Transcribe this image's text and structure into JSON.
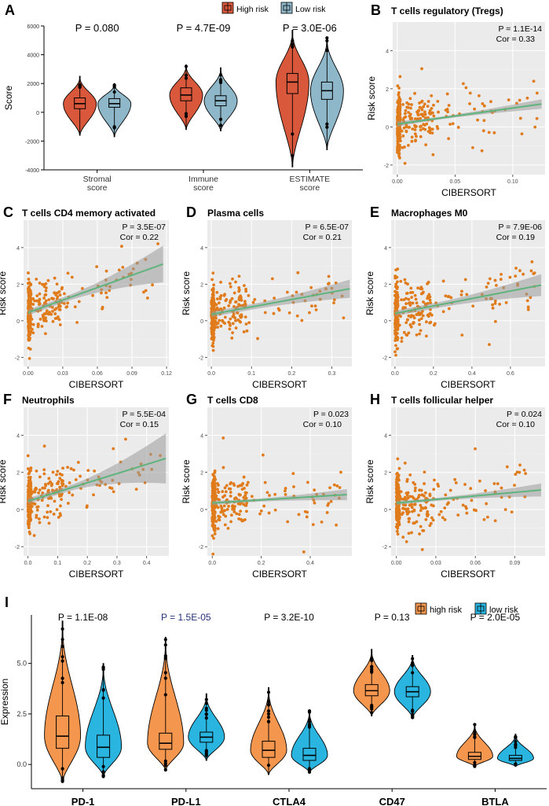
{
  "chart_data": [
    {
      "id": "A",
      "type": "violin",
      "panel_label": "A",
      "ylabel": "Score",
      "ylim": [
        -4000,
        6000
      ],
      "yticks": [
        -4000,
        -2000,
        0,
        2000,
        4000,
        6000
      ],
      "ytick_labels": [
        "-4000",
        "-2000",
        "0",
        "2000",
        "4000",
        "6000"
      ],
      "legend": [
        {
          "label": "High risk",
          "color": "#d9583b"
        },
        {
          "label": "Low risk",
          "color": "#8eb8c9"
        }
      ],
      "groups": [
        {
          "label_lines": [
            "Stromal",
            "score"
          ],
          "p_text": "P = 0.080",
          "series": [
            {
              "name": "High risk",
              "median": 600,
              "q1": 250,
              "q3": 1000,
              "min": -1600,
              "max": 2500
            },
            {
              "name": "Low risk",
              "median": 600,
              "q1": 350,
              "q3": 950,
              "min": -1700,
              "max": 2000
            }
          ]
        },
        {
          "label_lines": [
            "Immune",
            "score"
          ],
          "p_text": "P = 4.7E-09",
          "series": [
            {
              "name": "High risk",
              "median": 1200,
              "q1": 800,
              "q3": 1700,
              "min": -1200,
              "max": 3300
            },
            {
              "name": "Low risk",
              "median": 800,
              "q1": 450,
              "q3": 1150,
              "min": -1300,
              "max": 3100
            }
          ]
        },
        {
          "label_lines": [
            "ESTIMATE",
            "score"
          ],
          "p_text": "P = 3.0E-06",
          "series": [
            {
              "name": "High risk",
              "median": 2100,
              "q1": 1300,
              "q3": 2700,
              "min": -3800,
              "max": 5700
            },
            {
              "name": "Low risk",
              "median": 1500,
              "q1": 900,
              "q3": 2100,
              "min": -2600,
              "max": 5200
            }
          ]
        }
      ]
    },
    {
      "id": "B",
      "type": "scatter",
      "panel_label": "B",
      "title": "T cells regulatory (Tregs)",
      "xlabel": "CIBERSORT",
      "ylabel": "Risk score",
      "p_text": "P = 1.1E-14",
      "cor_text": "Cor = 0.33",
      "xlim": [
        -0.004,
        0.128
      ],
      "ylim": [
        -2.5,
        5.5
      ],
      "xticks": [
        0,
        0.05,
        0.1
      ],
      "xtick_labels": [
        "0.00",
        "0.05",
        "0.10"
      ],
      "yticks": [
        -2,
        0,
        2,
        4
      ],
      "ytick_labels": [
        "-2",
        "0",
        "2",
        "4"
      ],
      "fit": {
        "x0": 0,
        "y0": 0.15,
        "x1": 0.125,
        "y1": 1.2,
        "band0": 0.15,
        "band1": 0.25,
        "bandMid": 0.07
      }
    },
    {
      "id": "C",
      "type": "scatter",
      "panel_label": "C",
      "title": "T cells CD4 memory activated",
      "xlabel": "CIBERSORT",
      "ylabel": "Risk score",
      "p_text": "P = 3.5E-07",
      "cor_text": "Cor = 0.22",
      "xlim": [
        -0.004,
        0.122
      ],
      "ylim": [
        -2.5,
        5.5
      ],
      "xticks": [
        0,
        0.03,
        0.06,
        0.09,
        0.12
      ],
      "xtick_labels": [
        "0.00",
        "0.03",
        "0.06",
        "0.09",
        "0.12"
      ],
      "yticks": [
        -2,
        0,
        2,
        4
      ],
      "ytick_labels": [
        "-2",
        "0",
        "2",
        "4"
      ],
      "fit": {
        "x0": 0,
        "y0": 0.45,
        "x1": 0.117,
        "y1": 3.1,
        "band0": 0.15,
        "band1": 1.0,
        "bandMid": 0.15
      }
    },
    {
      "id": "D",
      "type": "scatter",
      "panel_label": "D",
      "title": "Plasma cells",
      "xlabel": "CIBERSORT",
      "ylabel": "Risk score",
      "p_text": "P = 6.5E-07",
      "cor_text": "Cor = 0.21",
      "xlim": [
        -0.01,
        0.35
      ],
      "ylim": [
        -2.5,
        5.5
      ],
      "xticks": [
        0,
        0.1,
        0.2,
        0.3
      ],
      "xtick_labels": [
        "0.0",
        "0.1",
        "0.2",
        "0.3"
      ],
      "yticks": [
        -2,
        0,
        2,
        4
      ],
      "ytick_labels": [
        "-2",
        "0",
        "2",
        "4"
      ],
      "fit": {
        "x0": 0,
        "y0": 0.35,
        "x1": 0.345,
        "y1": 1.75,
        "band0": 0.15,
        "band1": 0.5,
        "bandMid": 0.15
      }
    },
    {
      "id": "E",
      "type": "scatter",
      "panel_label": "E",
      "title": "Macrophages M0",
      "xlabel": "CIBERSORT",
      "ylabel": "Risk score",
      "p_text": "P = 7.9E-06",
      "cor_text": "Cor = 0.19",
      "xlim": [
        -0.02,
        0.78
      ],
      "ylim": [
        -2.5,
        5.5
      ],
      "xticks": [
        0,
        0.2,
        0.4,
        0.6
      ],
      "xtick_labels": [
        "0.0",
        "0.2",
        "0.4",
        "0.6"
      ],
      "yticks": [
        -2,
        0,
        2,
        4
      ],
      "ytick_labels": [
        "-2",
        "0",
        "2",
        "4"
      ],
      "fit": {
        "x0": 0,
        "y0": 0.4,
        "x1": 0.76,
        "y1": 1.95,
        "band0": 0.15,
        "band1": 0.6,
        "bandMid": 0.15
      }
    },
    {
      "id": "F",
      "type": "scatter",
      "panel_label": "F",
      "title": "Neutrophils",
      "xlabel": "CIBERSORT",
      "ylabel": "Risk score",
      "p_text": "P = 5.5E-04",
      "cor_text": "Cor = 0.15",
      "xlim": [
        -0.015,
        0.475
      ],
      "ylim": [
        -2.5,
        5.5
      ],
      "xticks": [
        0,
        0.1,
        0.2,
        0.3,
        0.4
      ],
      "xtick_labels": [
        "0.0",
        "0.1",
        "0.2",
        "0.3",
        "0.4"
      ],
      "yticks": [
        -2,
        0,
        2,
        4
      ],
      "ytick_labels": [
        "-2",
        "0",
        "2",
        "4"
      ],
      "fit": {
        "x0": 0,
        "y0": 0.45,
        "x1": 0.465,
        "y1": 2.75,
        "band0": 0.15,
        "band1": 1.35,
        "bandMid": 0.15
      }
    },
    {
      "id": "G",
      "type": "scatter",
      "panel_label": "G",
      "title": "T cells CD8",
      "xlabel": "CIBERSORT",
      "ylabel": "Risk score",
      "p_text": "P = 0.023",
      "cor_text": "Cor = 0.10",
      "xlim": [
        -0.02,
        0.57
      ],
      "ylim": [
        -2.5,
        5.5
      ],
      "xticks": [
        0,
        0.2,
        0.4
      ],
      "xtick_labels": [
        "0.0",
        "0.2",
        "0.4"
      ],
      "yticks": [
        -2,
        0,
        2,
        4
      ],
      "ytick_labels": [
        "-2",
        "0",
        "2",
        "4"
      ],
      "fit": {
        "x0": 0,
        "y0": 0.35,
        "x1": 0.55,
        "y1": 0.8,
        "band0": 0.12,
        "band1": 0.3,
        "bandMid": 0.08
      }
    },
    {
      "id": "H",
      "type": "scatter",
      "panel_label": "H",
      "title": "T cells follicular helper",
      "xlabel": "CIBERSORT",
      "ylabel": "Risk score",
      "p_text": "P = 0.024",
      "cor_text": "Cor = 0.10",
      "xlim": [
        -0.004,
        0.113
      ],
      "ylim": [
        -2.5,
        5.5
      ],
      "xticks": [
        0,
        0.03,
        0.06,
        0.09
      ],
      "xtick_labels": [
        "0.00",
        "0.03",
        "0.06",
        "0.09"
      ],
      "yticks": [
        -2,
        0,
        2,
        4
      ],
      "ytick_labels": [
        "-2",
        "0",
        "2",
        "4"
      ],
      "fit": {
        "x0": 0,
        "y0": 0.35,
        "x1": 0.11,
        "y1": 1.05,
        "band0": 0.12,
        "band1": 0.35,
        "bandMid": 0.08
      }
    },
    {
      "id": "I",
      "type": "violin",
      "panel_label": "I",
      "ylabel": "Expression",
      "ylim": [
        -1.2,
        7.4
      ],
      "yticks": [
        0,
        2.5,
        5.0
      ],
      "ytick_labels": [
        "0.0",
        "2.5",
        "5.0"
      ],
      "legend": [
        {
          "label": "high risk",
          "color": "#f5964e"
        },
        {
          "label": "low risk",
          "color": "#29b5df"
        }
      ],
      "groups": [
        {
          "label_lines": [
            "PD-1"
          ],
          "p_text": "P = 1.1E-08",
          "p_color": "#000000",
          "series": [
            {
              "name": "high risk",
              "median": 1.4,
              "q1": 0.8,
              "q3": 2.4,
              "min": -0.9,
              "max": 7.1
            },
            {
              "name": "low risk",
              "median": 0.85,
              "q1": 0.35,
              "q3": 1.45,
              "min": -0.6,
              "max": 5.0
            }
          ]
        },
        {
          "label_lines": [
            "PD-L1"
          ],
          "p_text": "P = 1.5E-05",
          "p_color": "#24307a",
          "series": [
            {
              "name": "high risk",
              "median": 1.05,
              "q1": 0.75,
              "q3": 1.55,
              "min": -0.3,
              "max": 6.3
            },
            {
              "name": "low risk",
              "median": 1.35,
              "q1": 1.1,
              "q3": 1.6,
              "min": 0.2,
              "max": 3.5
            }
          ]
        },
        {
          "label_lines": [
            "CTLA4"
          ],
          "p_text": "P = 3.2E-10",
          "p_color": "#000000",
          "series": [
            {
              "name": "high risk",
              "median": 0.7,
              "q1": 0.35,
              "q3": 1.15,
              "min": -0.5,
              "max": 3.8
            },
            {
              "name": "low risk",
              "median": 0.45,
              "q1": 0.2,
              "q3": 0.8,
              "min": -0.4,
              "max": 2.7
            }
          ]
        },
        {
          "label_lines": [
            "CD47"
          ],
          "p_text": "P = 0.13",
          "p_color": "#000000",
          "series": [
            {
              "name": "high risk",
              "median": 3.65,
              "q1": 3.4,
              "q3": 3.95,
              "min": 2.4,
              "max": 5.7
            },
            {
              "name": "low risk",
              "median": 3.6,
              "q1": 3.35,
              "q3": 3.85,
              "min": 2.3,
              "max": 5.4
            }
          ]
        },
        {
          "label_lines": [
            "BTLA"
          ],
          "p_text": "P = 2.0E-05",
          "p_color": "#000000",
          "series": [
            {
              "name": "high risk",
              "median": 0.4,
              "q1": 0.25,
              "q3": 0.6,
              "min": -0.1,
              "max": 2.0
            },
            {
              "name": "low risk",
              "median": 0.3,
              "q1": 0.2,
              "q3": 0.45,
              "min": -0.1,
              "max": 1.5
            }
          ]
        }
      ]
    }
  ]
}
